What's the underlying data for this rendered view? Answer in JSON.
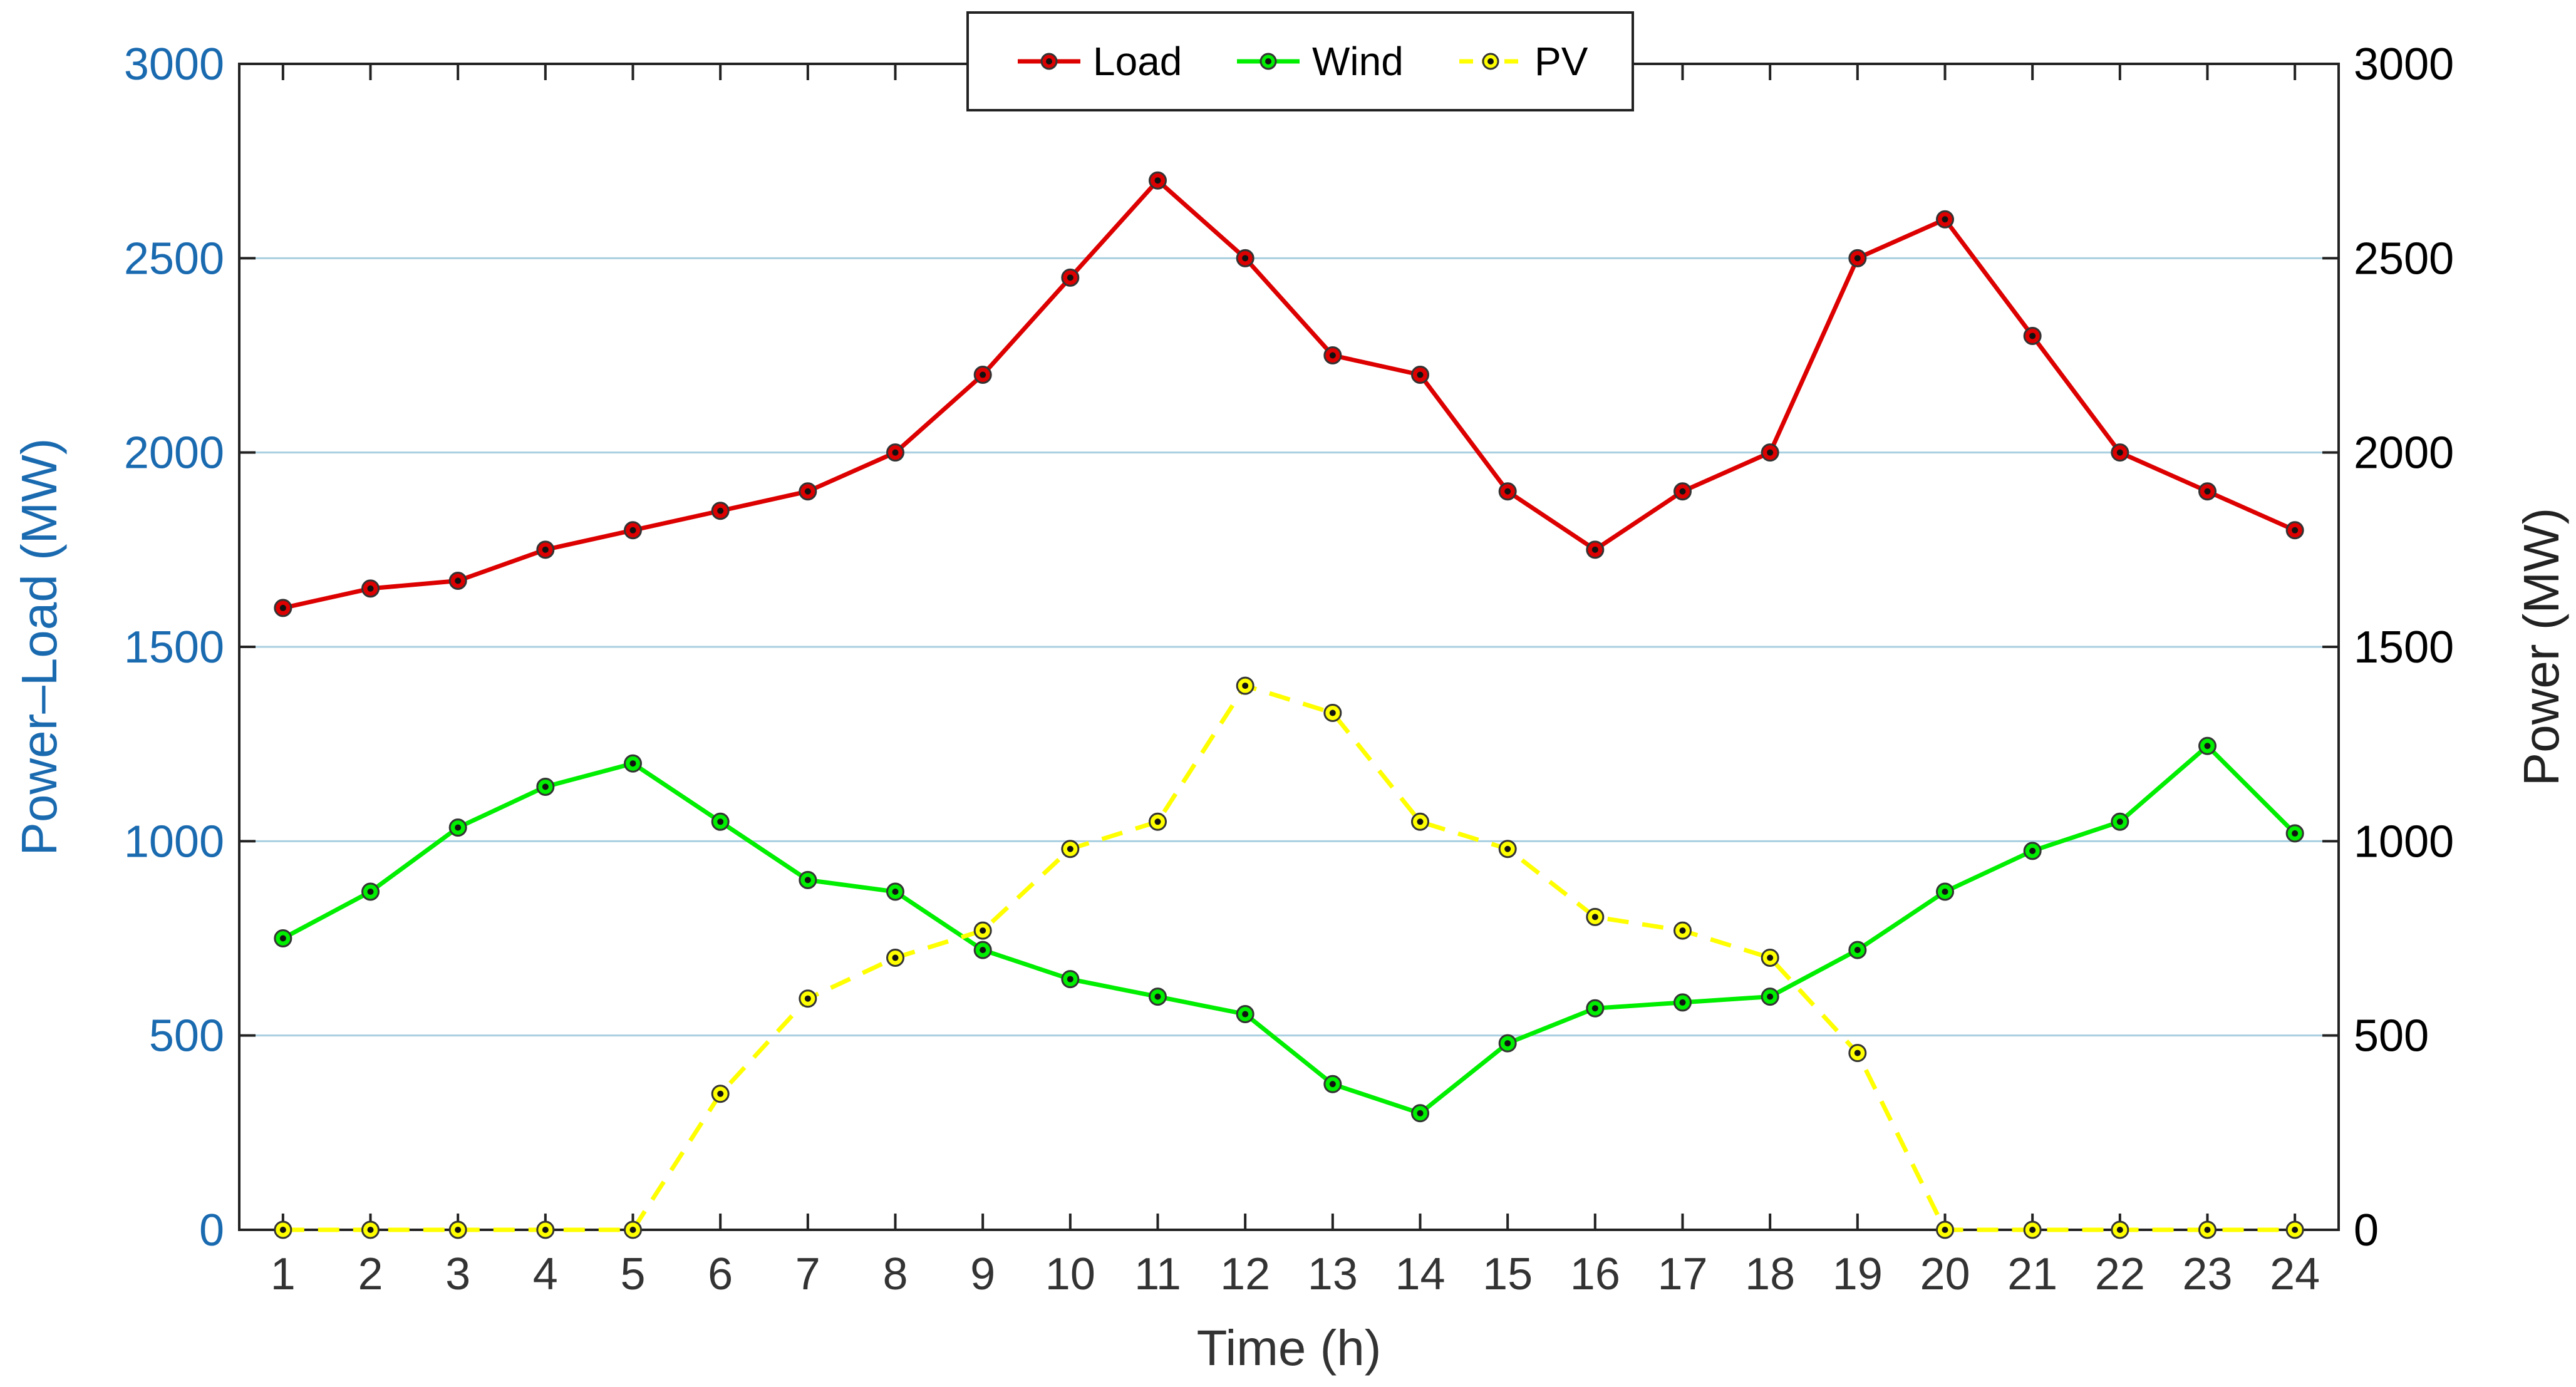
{
  "chart_data": {
    "type": "line",
    "x": [
      1,
      2,
      3,
      4,
      5,
      6,
      7,
      8,
      9,
      10,
      11,
      12,
      13,
      14,
      15,
      16,
      17,
      18,
      19,
      20,
      21,
      22,
      23,
      24
    ],
    "series": [
      {
        "name": "Load",
        "color": "#dd0000",
        "dash": false,
        "values": [
          1600,
          1650,
          1670,
          1750,
          1800,
          1850,
          1900,
          2000,
          2200,
          2450,
          2700,
          2500,
          2250,
          2200,
          1900,
          1750,
          1900,
          2000,
          2500,
          2600,
          2300,
          2000,
          1900,
          1800
        ]
      },
      {
        "name": "Wind",
        "color": "#00ee00",
        "dash": false,
        "values": [
          750,
          870,
          1035,
          1140,
          1200,
          1050,
          900,
          870,
          720,
          645,
          600,
          555,
          375,
          300,
          480,
          570,
          585,
          600,
          720,
          870,
          975,
          1050,
          1245,
          1020
        ]
      },
      {
        "name": "PV",
        "color": "#ffff00",
        "dash": true,
        "values": [
          0,
          0,
          0,
          0,
          0,
          350,
          595,
          700,
          770,
          980,
          1050,
          1400,
          1330,
          1050,
          980,
          805,
          770,
          700,
          455,
          0,
          0,
          0,
          0,
          0
        ]
      }
    ],
    "xlabel": "Time (h)",
    "ylabel_left": "Power–Load (MW)",
    "ylabel_right": "Power (MW)",
    "xlim": [
      0.5,
      24.5
    ],
    "ylim": [
      0,
      3000
    ],
    "yticks": [
      0,
      500,
      1000,
      1500,
      2000,
      2500,
      3000
    ],
    "xticks": [
      1,
      2,
      3,
      4,
      5,
      6,
      7,
      8,
      9,
      10,
      11,
      12,
      13,
      14,
      15,
      16,
      17,
      18,
      19,
      20,
      21,
      22,
      23,
      24
    ],
    "grid": "horizontal",
    "legend_position": "top-center",
    "colors": {
      "left_axis": "#1a6ab0",
      "right_axis": "#000000",
      "grid": "#a8cfe0"
    }
  }
}
